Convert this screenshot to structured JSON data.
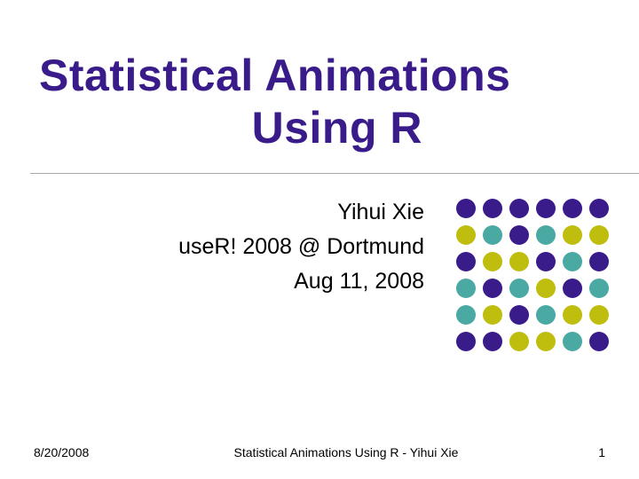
{
  "colors": {
    "title": "#3a1b8a",
    "text": "#000000",
    "divider": "#a8a8a8",
    "background": "#ffffff"
  },
  "title": {
    "line1": "Statistical Animations",
    "line2": "Using R",
    "fontsize": 52,
    "weight": "bold"
  },
  "author": {
    "name": "Yihui Xie",
    "venue": "useR! 2008 @ Dortmund",
    "date": "Aug 11, 2008",
    "fontsize": 25
  },
  "dot_decoration": {
    "rows": 6,
    "cols": 6,
    "dot_size": 22,
    "gap": 8,
    "palette": {
      "purple": "#3a1b8a",
      "olive": "#bfbd0e",
      "teal": "#4aa9a3"
    },
    "grid_colors": [
      [
        "purple",
        "purple",
        "purple",
        "purple",
        "purple",
        "purple"
      ],
      [
        "olive",
        "teal",
        "purple",
        "teal",
        "olive",
        "olive"
      ],
      [
        "purple",
        "olive",
        "olive",
        "purple",
        "teal",
        "purple"
      ],
      [
        "teal",
        "purple",
        "teal",
        "olive",
        "purple",
        "teal"
      ],
      [
        "teal",
        "olive",
        "purple",
        "teal",
        "olive",
        "olive"
      ],
      [
        "purple",
        "purple",
        "olive",
        "olive",
        "teal",
        "purple"
      ]
    ]
  },
  "footer": {
    "date": "8/20/2008",
    "center": "Statistical Animations Using R - Yihui Xie",
    "page": "1",
    "fontsize": 14
  }
}
